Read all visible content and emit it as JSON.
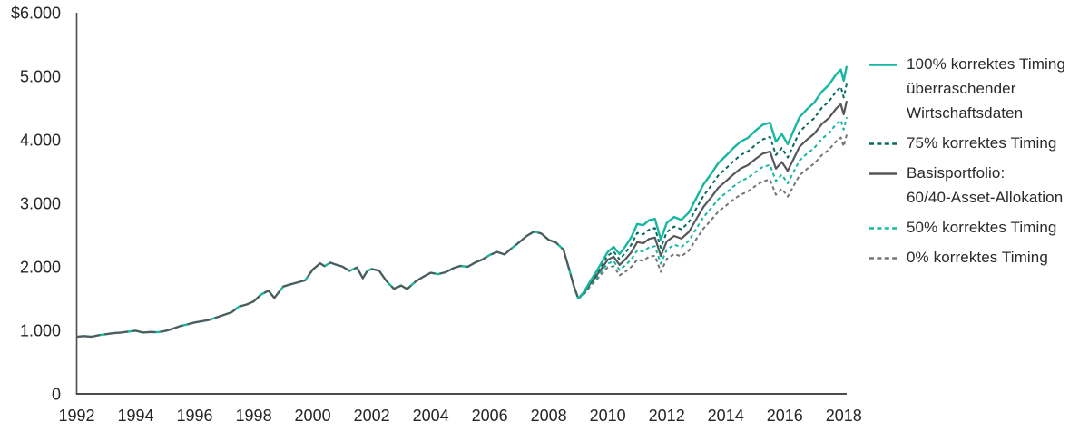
{
  "chart_data": {
    "type": "line",
    "title": "",
    "xlabel": "",
    "ylabel": "$",
    "xlim": [
      1992,
      2018.1
    ],
    "ylim": [
      0,
      6000
    ],
    "grid": false,
    "legend_position": "right",
    "axis_color": "#4c4c4c",
    "tick_color": "#262626",
    "y_ticks": [
      {
        "value": 6000,
        "label": "$6.000"
      },
      {
        "value": 5000,
        "label": "5.000"
      },
      {
        "value": 4000,
        "label": "4.000"
      },
      {
        "value": 3000,
        "label": "3.000"
      },
      {
        "value": 2000,
        "label": "2.000"
      },
      {
        "value": 1000,
        "label": "1.000"
      },
      {
        "value": 0,
        "label": "0"
      }
    ],
    "x_ticks": [
      {
        "value": 1992,
        "label": "1992"
      },
      {
        "value": 1994,
        "label": "1994"
      },
      {
        "value": 1996,
        "label": "1996"
      },
      {
        "value": 1998,
        "label": "1998"
      },
      {
        "value": 2000,
        "label": "2000"
      },
      {
        "value": 2002,
        "label": "2002"
      },
      {
        "value": 2004,
        "label": "2004"
      },
      {
        "value": 2006,
        "label": "2006"
      },
      {
        "value": 2008,
        "label": "2008"
      },
      {
        "value": 2010,
        "label": "2010"
      },
      {
        "value": 2012,
        "label": "2012"
      },
      {
        "value": 2014,
        "label": "2014"
      },
      {
        "value": 2016,
        "label": "2016"
      },
      {
        "value": 2018,
        "label": "2018"
      }
    ],
    "base_series": {
      "name": "shared-history-1992-2009",
      "color_under": "#16b8a1",
      "color_top": "#55575a",
      "x": [
        1992,
        1992.25,
        1992.5,
        1992.75,
        1993,
        1993.25,
        1993.5,
        1993.75,
        1994,
        1994.25,
        1994.5,
        1994.75,
        1995,
        1995.25,
        1995.5,
        1995.75,
        1996,
        1996.25,
        1996.5,
        1996.75,
        1997,
        1997.25,
        1997.5,
        1997.75,
        1998,
        1998.25,
        1998.5,
        1998.7,
        1998.85,
        1999,
        1999.25,
        1999.5,
        1999.75,
        2000,
        2000.25,
        2000.4,
        2000.6,
        2000.75,
        2001,
        2001.25,
        2001.5,
        2001.7,
        2001.85,
        2002,
        2002.25,
        2002.5,
        2002.75,
        2003,
        2003.2,
        2003.5,
        2003.75,
        2004,
        2004.25,
        2004.5,
        2004.75,
        2005,
        2005.25,
        2005.5,
        2005.75,
        2006,
        2006.25,
        2006.5,
        2006.75,
        2007,
        2007.25,
        2007.5,
        2007.75,
        2008,
        2008.25,
        2008.5,
        2008.7,
        2008.85,
        2009
      ],
      "y": [
        900,
        910,
        900,
        925,
        940,
        955,
        965,
        980,
        995,
        965,
        975,
        970,
        990,
        1025,
        1065,
        1095,
        1125,
        1145,
        1165,
        1205,
        1245,
        1285,
        1375,
        1405,
        1455,
        1565,
        1625,
        1510,
        1600,
        1690,
        1725,
        1755,
        1790,
        1955,
        2055,
        2010,
        2065,
        2040,
        2005,
        1935,
        1990,
        1820,
        1935,
        1965,
        1940,
        1775,
        1655,
        1705,
        1650,
        1775,
        1845,
        1905,
        1885,
        1915,
        1975,
        2015,
        2000,
        2065,
        2115,
        2185,
        2235,
        2195,
        2295,
        2385,
        2485,
        2555,
        2525,
        2425,
        2380,
        2270,
        1950,
        1700,
        1500
      ]
    },
    "post_x": [
      2009.2,
      2009.4,
      2009.6,
      2009.8,
      2010,
      2010.2,
      2010.4,
      2010.6,
      2010.8,
      2011,
      2011.2,
      2011.4,
      2011.6,
      2011.8,
      2012,
      2012.25,
      2012.5,
      2012.75,
      2013,
      2013.25,
      2013.5,
      2013.75,
      2014,
      2014.25,
      2014.5,
      2014.75,
      2015,
      2015.25,
      2015.5,
      2015.7,
      2015.9,
      2016.1,
      2016.3,
      2016.5,
      2016.75,
      2017,
      2017.25,
      2017.5,
      2017.75,
      2017.9,
      2018,
      2018.1
    ],
    "series": [
      {
        "key": "timing-100",
        "label_lines": [
          "100% korrektes Timing",
          "überraschender",
          "Wirtschaftsdaten"
        ],
        "color": "#16b8a1",
        "style": "solid",
        "width": 2.4,
        "y": [
          1610,
          1770,
          1915,
          2075,
          2235,
          2315,
          2200,
          2325,
          2470,
          2675,
          2655,
          2735,
          2755,
          2430,
          2690,
          2785,
          2740,
          2855,
          3080,
          3300,
          3460,
          3635,
          3745,
          3865,
          3970,
          4030,
          4140,
          4235,
          4270,
          3970,
          4090,
          3930,
          4145,
          4355,
          4480,
          4585,
          4755,
          4865,
          5035,
          5105,
          4930,
          5160
        ]
      },
      {
        "key": "timing-75",
        "label_lines": [
          "75% korrektes Timing"
        ],
        "color": "#07695d",
        "style": "dashed",
        "width": 2,
        "y": [
          1600,
          1750,
          1885,
          2030,
          2175,
          2240,
          2115,
          2220,
          2350,
          2535,
          2510,
          2585,
          2610,
          2300,
          2545,
          2635,
          2590,
          2705,
          2915,
          3120,
          3275,
          3440,
          3545,
          3655,
          3760,
          3815,
          3915,
          4005,
          4045,
          3760,
          3870,
          3720,
          3920,
          4125,
          4240,
          4340,
          4500,
          4605,
          4765,
          4835,
          4665,
          4885
        ]
      },
      {
        "key": "basisportfolio",
        "label_lines": [
          "Basisportfolio:",
          "60/40-Asset-Allokation"
        ],
        "color": "#55575a",
        "style": "solid",
        "width": 2.2,
        "y": [
          1590,
          1730,
          1850,
          1980,
          2110,
          2160,
          2030,
          2120,
          2230,
          2390,
          2370,
          2440,
          2460,
          2170,
          2400,
          2485,
          2445,
          2550,
          2750,
          2945,
          3090,
          3245,
          3345,
          3450,
          3545,
          3600,
          3695,
          3780,
          3815,
          3545,
          3650,
          3510,
          3700,
          3890,
          4000,
          4095,
          4245,
          4345,
          4495,
          4560,
          4400,
          4610
        ]
      },
      {
        "key": "timing-50",
        "label_lines": [
          "50% korrektes Timing"
        ],
        "color": "#16b8a1",
        "style": "dashed",
        "width": 2,
        "y": [
          1580,
          1710,
          1820,
          1935,
          2050,
          2090,
          1950,
          2025,
          2120,
          2260,
          2240,
          2305,
          2325,
          2050,
          2270,
          2350,
          2310,
          2410,
          2600,
          2785,
          2920,
          3065,
          3160,
          3260,
          3350,
          3400,
          3490,
          3570,
          3605,
          3350,
          3450,
          3315,
          3495,
          3675,
          3780,
          3870,
          4010,
          4105,
          4250,
          4310,
          4160,
          4355
        ]
      },
      {
        "key": "timing-0",
        "label_lines": [
          "0% korrektes Timing"
        ],
        "color": "#737578",
        "style": "dashed",
        "width": 2,
        "y": [
          1570,
          1690,
          1785,
          1890,
          1990,
          2010,
          1865,
          1925,
          2000,
          2115,
          2095,
          2160,
          2175,
          1920,
          2125,
          2200,
          2165,
          2255,
          2435,
          2605,
          2735,
          2870,
          2960,
          3055,
          3135,
          3185,
          3270,
          3345,
          3375,
          3135,
          3230,
          3105,
          3275,
          3440,
          3540,
          3625,
          3755,
          3845,
          3980,
          4035,
          3895,
          4080
        ]
      }
    ],
    "draw_order": [
      "timing-0",
      "timing-50",
      "basisportfolio",
      "timing-75",
      "timing-100"
    ]
  }
}
